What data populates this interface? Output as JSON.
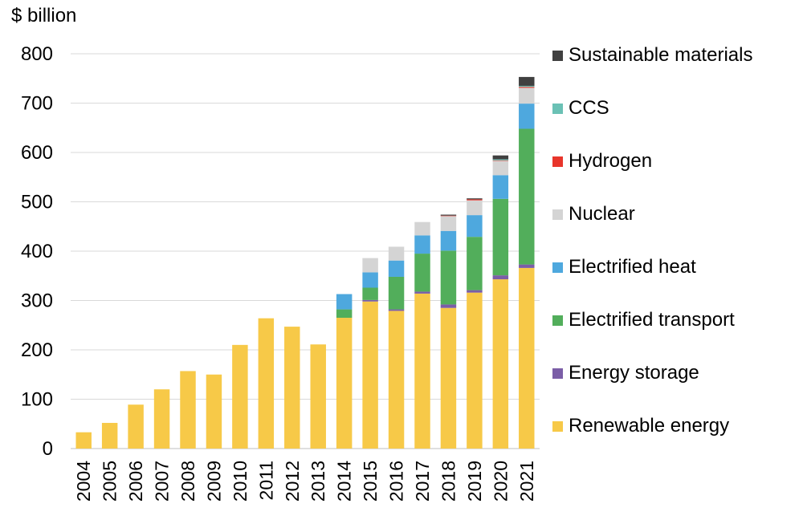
{
  "chart_data": {
    "type": "bar",
    "stacked": true,
    "title": "",
    "unit_label": "$ billion",
    "xlabel": "",
    "ylabel": "",
    "ylim": [
      0,
      800
    ],
    "yticks": [
      0,
      100,
      200,
      300,
      400,
      500,
      600,
      700,
      800
    ],
    "grid": true,
    "legend_position": "right",
    "categories": [
      "2004",
      "2005",
      "2006",
      "2007",
      "2008",
      "2009",
      "2010",
      "2011",
      "2012",
      "2013",
      "2014",
      "2015",
      "2016",
      "2017",
      "2018",
      "2019",
      "2020",
      "2021"
    ],
    "series": [
      {
        "name": "Renewable energy",
        "color": "#F7C948",
        "values": [
          33,
          52,
          89,
          120,
          157,
          150,
          210,
          264,
          247,
          211,
          265,
          298,
          279,
          314,
          285,
          316,
          343,
          366
        ]
      },
      {
        "name": "Energy storage",
        "color": "#7B5EA7",
        "values": [
          0,
          0,
          0,
          0,
          0,
          0,
          0,
          0,
          0,
          0,
          0,
          3,
          3,
          4,
          7,
          5,
          8,
          7
        ]
      },
      {
        "name": "Electrified transport",
        "color": "#52AE5B",
        "values": [
          0,
          0,
          0,
          0,
          0,
          0,
          0,
          0,
          0,
          0,
          17,
          25,
          66,
          77,
          109,
          108,
          155,
          275
        ]
      },
      {
        "name": "Electrified heat",
        "color": "#4EA8DE",
        "values": [
          0,
          0,
          0,
          0,
          0,
          0,
          0,
          0,
          0,
          0,
          31,
          31,
          33,
          37,
          40,
          44,
          48,
          51
        ]
      },
      {
        "name": "Nuclear",
        "color": "#D4D4D4",
        "values": [
          0,
          0,
          0,
          0,
          0,
          0,
          0,
          0,
          0,
          0,
          0,
          29,
          28,
          27,
          30,
          30,
          29,
          32
        ]
      },
      {
        "name": "Hydrogen",
        "color": "#E8352B",
        "values": [
          0,
          0,
          0,
          0,
          0,
          0,
          0,
          0,
          0,
          0,
          0,
          0,
          0,
          0,
          1,
          2,
          1,
          2
        ]
      },
      {
        "name": "CCS",
        "color": "#6BC1B5",
        "values": [
          0,
          0,
          0,
          0,
          0,
          0,
          0,
          0,
          0,
          0,
          0,
          0,
          0,
          0,
          0,
          0,
          2,
          2
        ]
      },
      {
        "name": "Sustainable materials",
        "color": "#404040",
        "values": [
          0,
          0,
          0,
          0,
          0,
          0,
          0,
          0,
          0,
          0,
          0,
          0,
          0,
          0,
          2,
          2,
          8,
          18
        ]
      }
    ],
    "legend_order": [
      "Sustainable materials",
      "CCS",
      "Hydrogen",
      "Nuclear",
      "Electrified heat",
      "Electrified transport",
      "Energy storage",
      "Renewable energy"
    ]
  }
}
